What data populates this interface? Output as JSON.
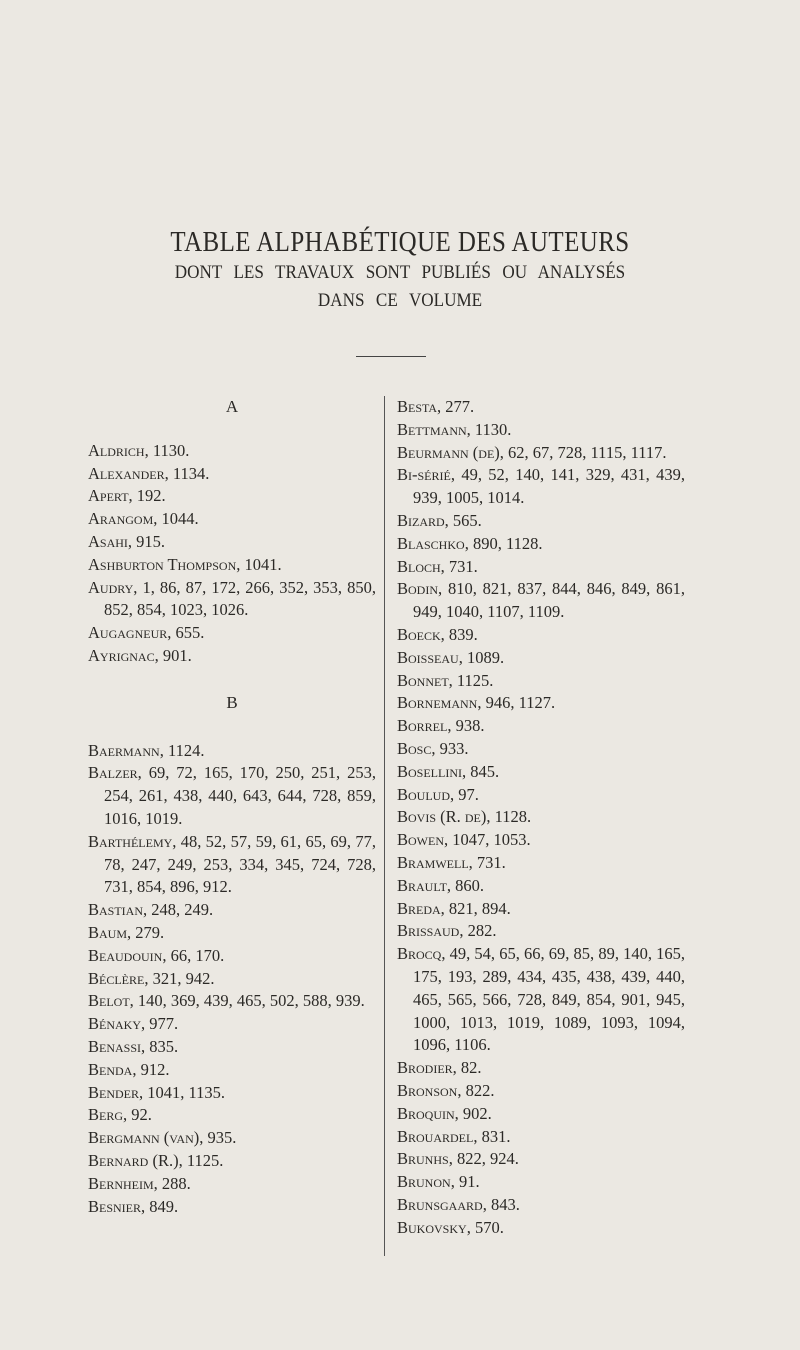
{
  "title": "TABLE ALPHABÉTIQUE DES AUTEURS",
  "subtitle_line1": "DONT LES TRAVAUX SONT PUBLIÉS OU ANALYSÉS",
  "subtitle_line2": "DANS CE VOLUME",
  "sections": {
    "a": {
      "letter": "A",
      "entries": [
        {
          "name": "Aldrich",
          "pages": ", 1130."
        },
        {
          "name": "Alexander",
          "pages": ", 1134."
        },
        {
          "name": "Apert",
          "pages": ", 192."
        },
        {
          "name": "Arangom",
          "pages": ", 1044."
        },
        {
          "name": "Asahi",
          "pages": ", 915."
        },
        {
          "name": "Ashburton Thompson",
          "pages": ", 1041."
        },
        {
          "name": "Audry",
          "pages": ", 1, 86, 87, 172, 266, 352, 353, 850, 852, 854, 1023, 1026."
        },
        {
          "name": "Augagneur",
          "pages": ", 655."
        },
        {
          "name": "Ayrignac",
          "pages": ", 901."
        }
      ]
    },
    "b_left": {
      "letter": "B",
      "entries": [
        {
          "name": "Baermann",
          "pages": ", 1124."
        },
        {
          "name": "Balzer",
          "pages": ", 69, 72, 165, 170, 250, 251, 253, 254, 261, 438, 440, 643, 644, 728, 859, 1016, 1019."
        },
        {
          "name": "Barthélemy",
          "pages": ", 48, 52, 57, 59, 61, 65, 69, 77, 78, 247, 249, 253, 334, 345, 724, 728, 731, 854, 896, 912."
        },
        {
          "name": "Bastian",
          "pages": ", 248, 249."
        },
        {
          "name": "Baum",
          "pages": ", 279."
        },
        {
          "name": "Beaudouin",
          "pages": ", 66, 170."
        },
        {
          "name": "Béclère",
          "pages": ", 321, 942."
        },
        {
          "name": "Belot",
          "pages": ", 140, 369, 439, 465, 502, 588, 939."
        },
        {
          "name": "Bénaky",
          "pages": ", 977."
        },
        {
          "name": "Benassi",
          "pages": ", 835."
        },
        {
          "name": "Benda",
          "pages": ", 912."
        },
        {
          "name": "Bender",
          "pages": ", 1041, 1135."
        },
        {
          "name": "Berg",
          "pages": ", 92."
        },
        {
          "name": "Bergmann (van)",
          "pages": ", 935."
        },
        {
          "name": "Bernard (R.)",
          "pages": ", 1125."
        },
        {
          "name": "Bernheim",
          "pages": ", 288."
        },
        {
          "name": "Besnier",
          "pages": ", 849."
        }
      ]
    },
    "b_right": {
      "entries": [
        {
          "name": "Besta",
          "pages": ", 277."
        },
        {
          "name": "Bettmann",
          "pages": ", 1130."
        },
        {
          "name": "Beurmann (de)",
          "pages": ", 62, 67, 728, 1115, 1117."
        },
        {
          "name": "Bi-sérié",
          "pages": ", 49, 52, 140, 141, 329, 431, 439, 939, 1005, 1014."
        },
        {
          "name": "Bizard",
          "pages": ", 565."
        },
        {
          "name": "Blaschko",
          "pages": ", 890, 1128."
        },
        {
          "name": "Bloch",
          "pages": ", 731."
        },
        {
          "name": "Bodin",
          "pages": ", 810, 821, 837, 844, 846, 849, 861, 949, 1040, 1107, 1109."
        },
        {
          "name": "Boeck",
          "pages": ", 839."
        },
        {
          "name": "Boisseau",
          "pages": ", 1089."
        },
        {
          "name": "Bonnet",
          "pages": ", 1125."
        },
        {
          "name": "Bornemann",
          "pages": ", 946, 1127."
        },
        {
          "name": "Borrel",
          "pages": ", 938."
        },
        {
          "name": "Bosc",
          "pages": ", 933."
        },
        {
          "name": "Bosellini",
          "pages": ", 845."
        },
        {
          "name": "Boulud",
          "pages": ", 97."
        },
        {
          "name": "Bovis (R. de)",
          "pages": ", 1128."
        },
        {
          "name": "Bowen",
          "pages": ", 1047, 1053."
        },
        {
          "name": "Bramwell",
          "pages": ", 731."
        },
        {
          "name": "Brault",
          "pages": ", 860."
        },
        {
          "name": "Breda",
          "pages": ", 821, 894."
        },
        {
          "name": "Brissaud",
          "pages": ", 282."
        },
        {
          "name": "Brocq",
          "pages": ", 49, 54, 65, 66, 69, 85, 89, 140, 165, 175, 193, 289, 434, 435, 438, 439, 440, 465, 565, 566, 728, 849, 854, 901, 945, 1000, 1013, 1019, 1089, 1093, 1094, 1096, 1106."
        },
        {
          "name": "Brodier",
          "pages": ", 82."
        },
        {
          "name": "Bronson",
          "pages": ", 822."
        },
        {
          "name": "Broquin",
          "pages": ", 902."
        },
        {
          "name": "Brouardel",
          "pages": ", 831."
        },
        {
          "name": "Brunhs",
          "pages": ", 822, 924."
        },
        {
          "name": "Brunon",
          "pages": ", 91."
        },
        {
          "name": "Brunsgaard",
          "pages": ", 843."
        },
        {
          "name": "Bukovsky",
          "pages": ", 570."
        }
      ]
    }
  }
}
